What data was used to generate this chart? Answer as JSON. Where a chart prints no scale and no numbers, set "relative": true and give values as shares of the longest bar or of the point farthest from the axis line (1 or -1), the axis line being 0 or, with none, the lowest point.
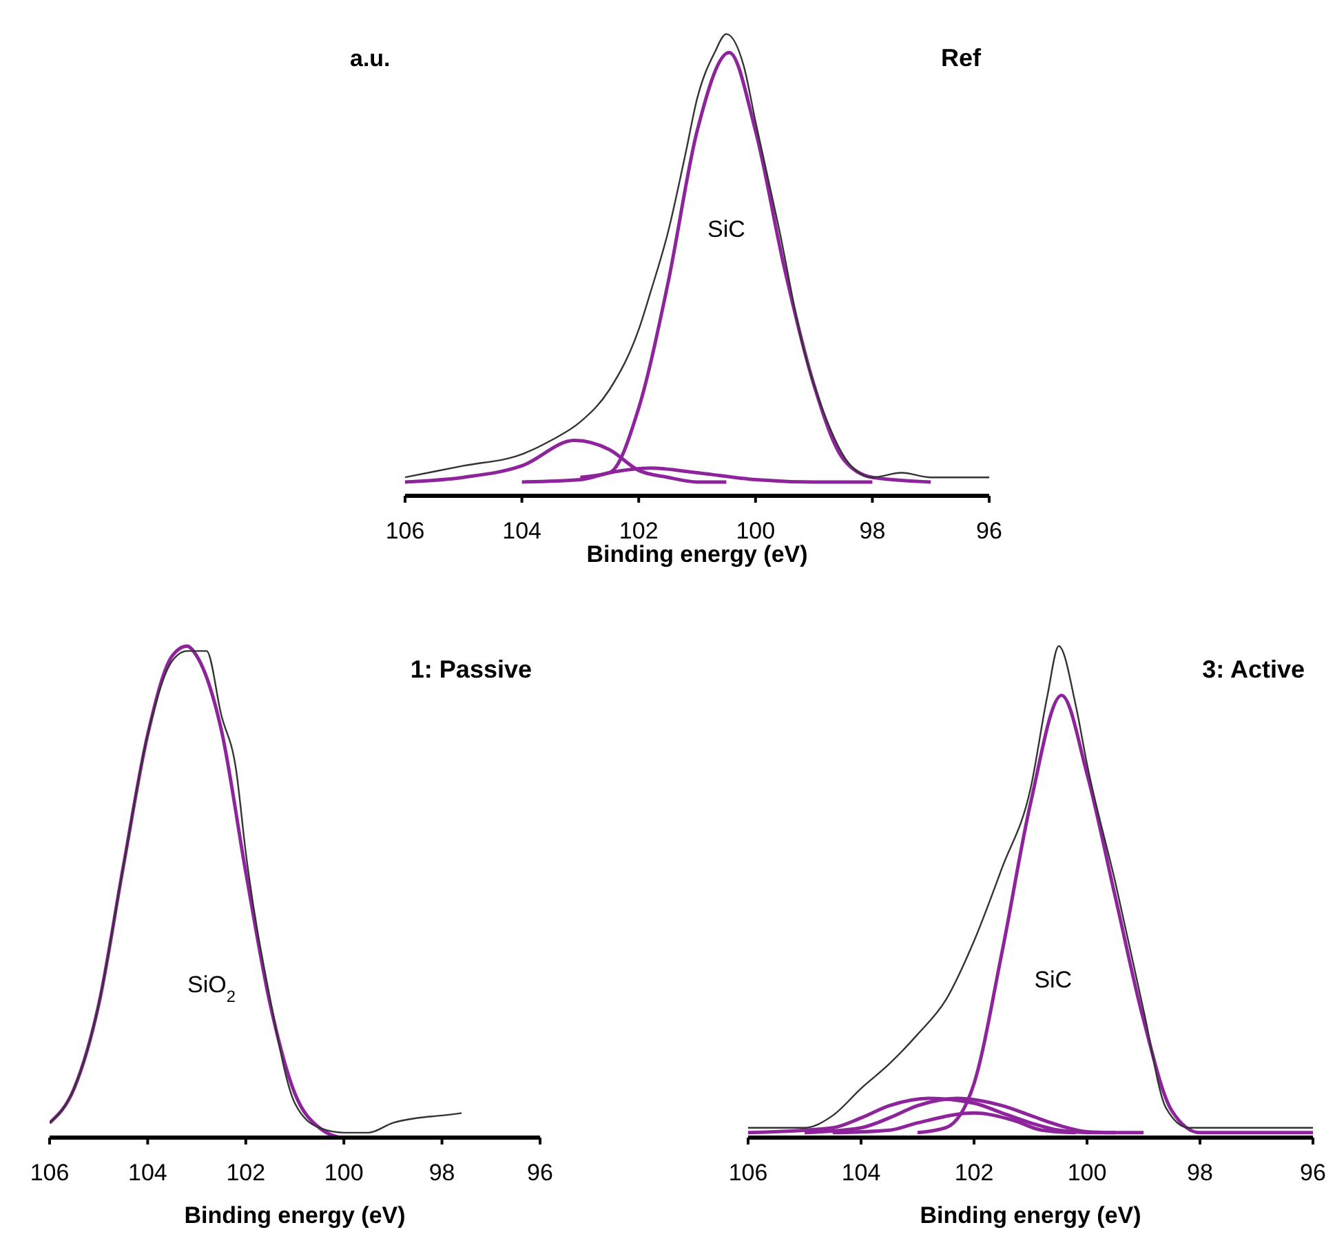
{
  "chart_data": [
    {
      "type": "line",
      "title": "Ref",
      "ylabel": "a.u.",
      "xlabel": "Binding energy (eV)",
      "relative": true,
      "xlim": [
        106,
        96
      ],
      "xticks": [
        106,
        104,
        102,
        100,
        98,
        96
      ],
      "legend": false,
      "grid": false,
      "marker": "none",
      "line_style": "solid",
      "annotations": [
        "SiC"
      ],
      "series": [
        {
          "color": "#333333",
          "x": [
            106,
            105,
            104,
            103.5,
            103,
            102.5,
            102,
            101.8,
            101.5,
            101.2,
            101,
            100.7,
            100.5,
            100.2,
            100,
            99.6,
            99.2,
            98.8,
            98.4,
            98,
            97.5,
            97,
            96
          ],
          "values": [
            0.04,
            0.065,
            0.09,
            0.12,
            0.16,
            0.23,
            0.36,
            0.44,
            0.57,
            0.74,
            0.86,
            0.96,
            1.0,
            0.93,
            0.81,
            0.58,
            0.33,
            0.17,
            0.07,
            0.04,
            0.05,
            0.04,
            0.04
          ]
        },
        {
          "color": "#8e249c",
          "x": [
            103,
            102.5,
            102,
            101.5,
            101,
            100.45,
            100,
            99.5,
            99,
            98.5,
            98,
            97
          ],
          "values": [
            0.04,
            0.05,
            0.19,
            0.46,
            0.79,
            0.96,
            0.79,
            0.49,
            0.24,
            0.08,
            0.04,
            0.03
          ]
        },
        {
          "color": "#8e249c",
          "x": [
            106,
            105,
            104,
            103.1,
            102.5,
            102,
            101.5,
            101,
            100.5
          ],
          "values": [
            0.03,
            0.04,
            0.065,
            0.12,
            0.1,
            0.055,
            0.04,
            0.03,
            0.03
          ]
        },
        {
          "color": "#8e249c",
          "x": [
            104,
            103,
            102.5,
            101.8,
            101,
            100,
            99,
            98
          ],
          "values": [
            0.03,
            0.035,
            0.05,
            0.06,
            0.05,
            0.035,
            0.03,
            0.03
          ]
        }
      ]
    },
    {
      "type": "line",
      "title": "1: Passive",
      "xlabel": "Binding energy (eV)",
      "relative": true,
      "xlim": [
        106,
        96
      ],
      "xticks": [
        106,
        104,
        102,
        100,
        98,
        96
      ],
      "legend": false,
      "grid": false,
      "marker": "none",
      "line_style": "solid",
      "annotations": [
        "SiO$_{2}$"
      ],
      "series": [
        {
          "color": "#333333",
          "x": [
            106,
            105.5,
            105,
            104.5,
            104,
            103.5,
            103.2,
            102.8,
            102.5,
            102.2,
            102,
            101.5,
            101,
            100.5,
            100,
            99.5,
            99,
            98.5,
            98,
            97.6
          ],
          "values": [
            0.03,
            0.1,
            0.27,
            0.55,
            0.82,
            0.97,
            0.99,
            0.99,
            0.86,
            0.75,
            0.58,
            0.28,
            0.07,
            0.02,
            0.01,
            0.01,
            0.03,
            0.04,
            0.045,
            0.05
          ]
        },
        {
          "color": "#8e249c",
          "x": [
            106,
            105.5,
            105,
            104.5,
            104,
            103.5,
            103.2,
            103,
            102.5,
            102,
            101.5,
            101,
            100.5,
            100,
            96
          ],
          "values": [
            0.03,
            0.1,
            0.27,
            0.55,
            0.82,
            0.98,
            1.0,
            0.98,
            0.83,
            0.54,
            0.27,
            0.09,
            0.02,
            0,
            0
          ]
        }
      ]
    },
    {
      "type": "line",
      "title": "3: Active",
      "xlabel": "Binding energy (eV)",
      "relative": true,
      "xlim": [
        106,
        96
      ],
      "xticks": [
        106,
        104,
        102,
        100,
        98,
        96
      ],
      "legend": false,
      "grid": false,
      "marker": "none",
      "line_style": "solid",
      "annotations": [
        "SiC"
      ],
      "series": [
        {
          "color": "#333333",
          "x": [
            106,
            105,
            104.5,
            104,
            103.5,
            103,
            102.5,
            102,
            101.5,
            101,
            100.7,
            100.5,
            100.2,
            100,
            99.5,
            99,
            98.6,
            98.2,
            97.5,
            96
          ],
          "values": [
            0.02,
            0.02,
            0.045,
            0.1,
            0.15,
            0.21,
            0.28,
            0.4,
            0.55,
            0.71,
            0.9,
            1.0,
            0.88,
            0.76,
            0.52,
            0.26,
            0.06,
            0.02,
            0.02,
            0.02
          ]
        },
        {
          "color": "#8e249c",
          "x": [
            103,
            102.5,
            102,
            101.5,
            101,
            100.45,
            100,
            99.5,
            99,
            98.5,
            98,
            96
          ],
          "values": [
            0.01,
            0.02,
            0.11,
            0.38,
            0.68,
            0.9,
            0.74,
            0.49,
            0.24,
            0.055,
            0.01,
            0.01
          ]
        },
        {
          "color": "#8e249c",
          "x": [
            106,
            104.5,
            104,
            103.5,
            102.8,
            102,
            101.5,
            101,
            100.5,
            100,
            99
          ],
          "values": [
            0.01,
            0.02,
            0.04,
            0.065,
            0.08,
            0.07,
            0.05,
            0.03,
            0.015,
            0.01,
            0.01
          ]
        },
        {
          "color": "#8e249c",
          "x": [
            105,
            104,
            103.5,
            103,
            102.3,
            101.5,
            101,
            100.5,
            100,
            99.5
          ],
          "values": [
            0.01,
            0.02,
            0.04,
            0.065,
            0.08,
            0.065,
            0.045,
            0.025,
            0.012,
            0.01
          ]
        },
        {
          "color": "#8e249c",
          "x": [
            104.5,
            103.5,
            103,
            102,
            101.3,
            100.8,
            100.2
          ],
          "values": [
            0.01,
            0.015,
            0.03,
            0.05,
            0.035,
            0.015,
            0.01
          ]
        }
      ]
    }
  ]
}
